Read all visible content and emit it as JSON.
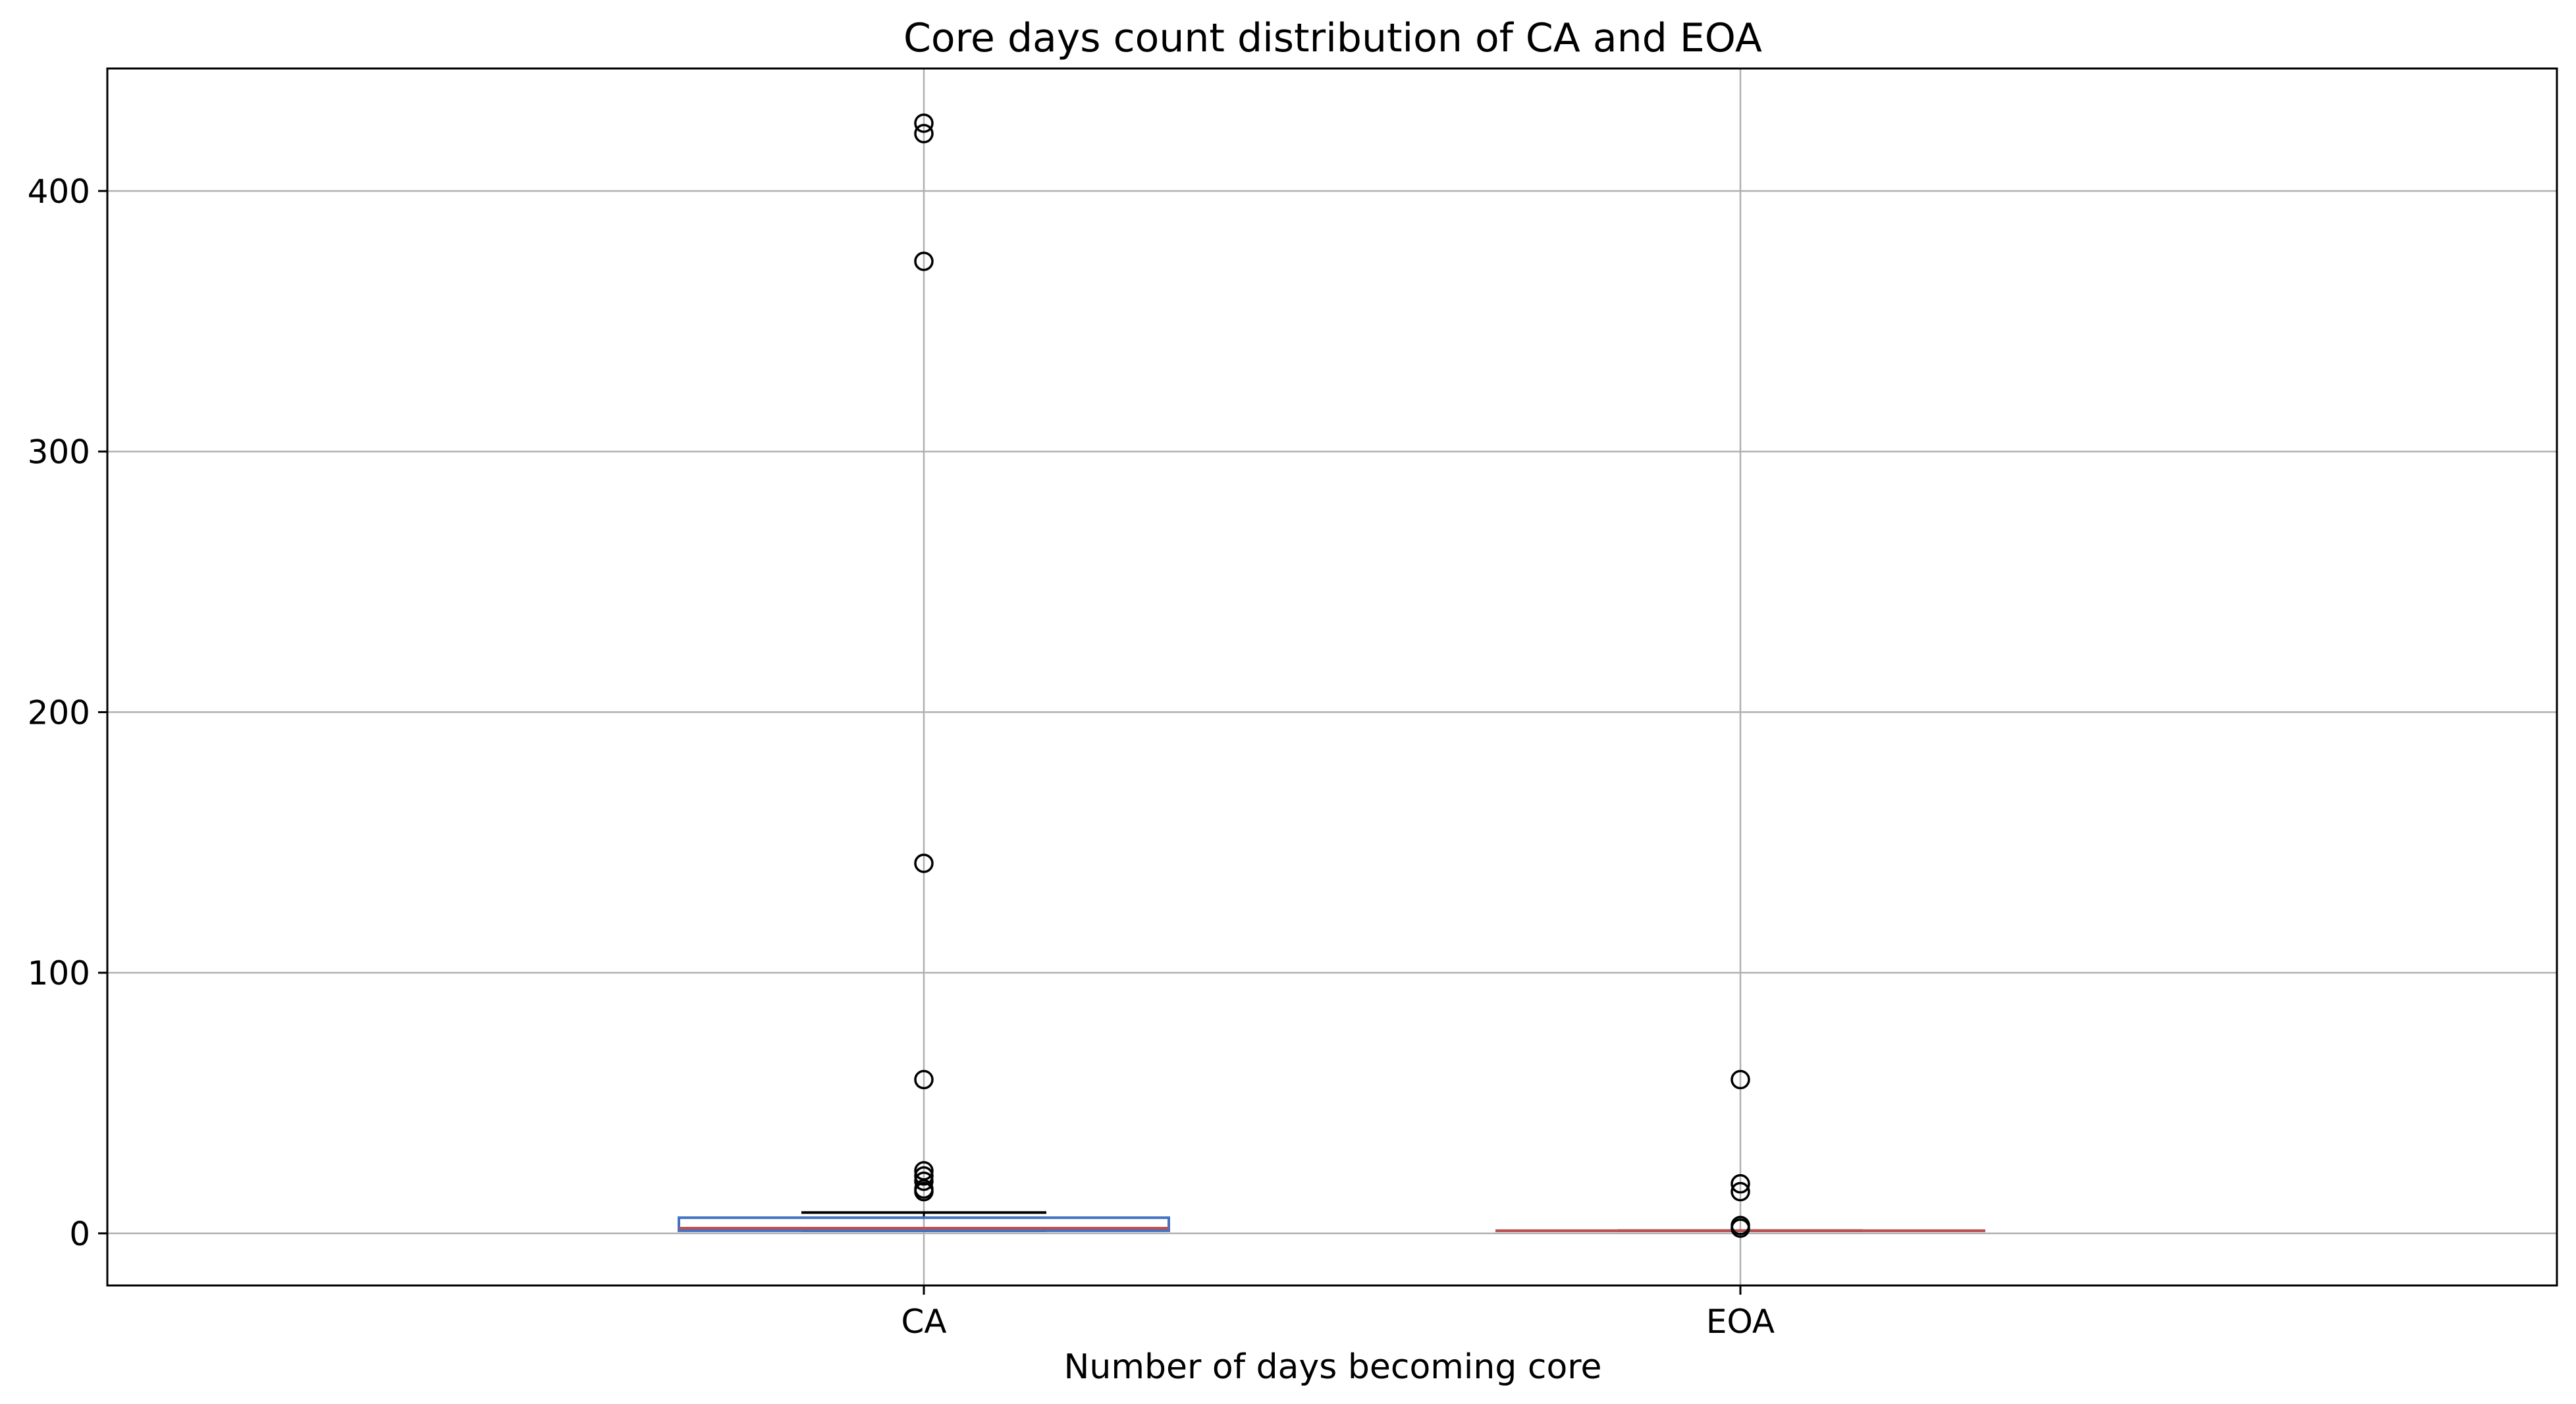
{
  "chart_data": {
    "type": "box",
    "title": "Core days count distribution of CA and EOA",
    "xlabel": "Number of days becoming core",
    "ylabel": "",
    "ylim": [
      -20,
      447
    ],
    "yticks": [
      0,
      100,
      200,
      300,
      400
    ],
    "grid": true,
    "categories": [
      "CA",
      "EOA"
    ],
    "boxes": [
      {
        "name": "CA",
        "whisker_low": 1,
        "q1": 1,
        "median": 2,
        "q3": 6,
        "whisker_high": 8,
        "outliers": [
          16,
          17,
          20,
          22,
          24,
          59,
          142,
          373,
          422,
          426
        ],
        "box_color": "#4472c4",
        "median_color": "#c0504d"
      },
      {
        "name": "EOA",
        "whisker_low": 1,
        "q1": 1,
        "median": 1,
        "q3": 1,
        "whisker_high": 1,
        "outliers": [
          2,
          3,
          16,
          19,
          59
        ],
        "box_color": "#4472c4",
        "median_color": "#c0504d"
      }
    ],
    "colors": {
      "grid": "#b0b0b0",
      "frame": "#000000",
      "whisker": "#000000"
    }
  }
}
